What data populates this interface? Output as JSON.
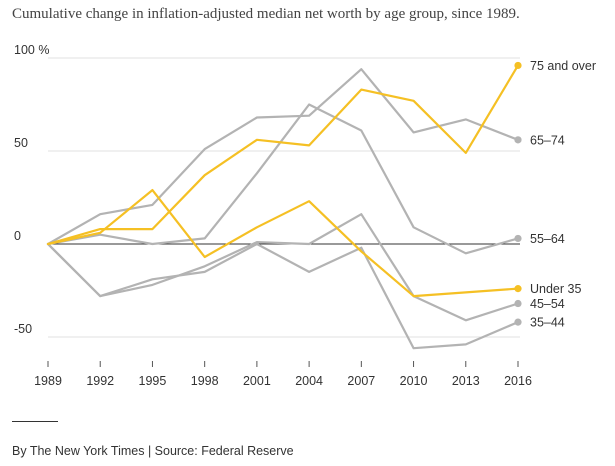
{
  "title": "Cumulative change in inflation-adjusted median net worth by age group, since 1989.",
  "credit": "By The New York Times | Source: Federal Reserve",
  "colors": {
    "highlight": "#f5c024",
    "muted": "#b3b3b3",
    "zero_line": "#333333"
  },
  "chart_data": {
    "type": "line",
    "title": "Cumulative change in inflation-adjusted median net worth by age group, since 1989.",
    "xlabel": "",
    "ylabel": "",
    "x": [
      1989,
      1992,
      1995,
      1998,
      2001,
      2004,
      2007,
      2010,
      2013,
      2016
    ],
    "x_tick_labels": [
      "1989",
      "1992",
      "1995",
      "1998",
      "2001",
      "2004",
      "2007",
      "2010",
      "2013",
      "2016"
    ],
    "y_ticks": [
      {
        "value": 100,
        "label": "100 %"
      },
      {
        "value": 50,
        "label": "50"
      },
      {
        "value": 0,
        "label": "0"
      },
      {
        "value": -50,
        "label": "-50"
      }
    ],
    "ylim": [
      -55,
      105
    ],
    "grid": "horizontal",
    "legend": "direct labels at line ends",
    "series": [
      {
        "name": "75 and over",
        "highlight": true,
        "end_marker": true,
        "values": [
          0,
          8,
          8,
          37,
          56,
          53,
          83,
          77,
          49,
          96
        ]
      },
      {
        "name": "65–74",
        "highlight": false,
        "end_marker": true,
        "values": [
          0,
          16,
          21,
          51,
          68,
          69,
          94,
          60,
          67,
          56
        ]
      },
      {
        "name": "55–64",
        "highlight": false,
        "end_marker": true,
        "values": [
          0,
          5,
          0,
          3,
          38,
          75,
          61,
          9,
          -5,
          3
        ]
      },
      {
        "name": "Under 35",
        "highlight": true,
        "end_marker": true,
        "values": [
          0,
          6,
          29,
          -7,
          9,
          23,
          -4,
          -28,
          -26,
          -24
        ]
      },
      {
        "name": "45–54",
        "highlight": false,
        "end_marker": true,
        "values": [
          0,
          -28,
          -22,
          -12,
          1,
          0,
          16,
          -28,
          -41,
          -32
        ]
      },
      {
        "name": "35–44",
        "highlight": false,
        "end_marker": true,
        "values": [
          0,
          -28,
          -19,
          -15,
          0,
          -15,
          -2,
          -56,
          -54,
          -42
        ]
      }
    ]
  }
}
